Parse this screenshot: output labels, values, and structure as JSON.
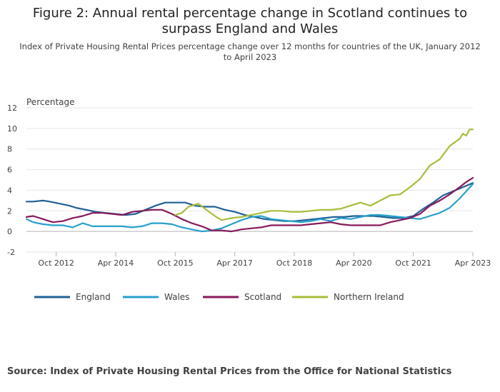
{
  "title": "Figure 2: Annual rental percentage change in Scotland continues to surpass England and Wales",
  "subtitle": "Index of Private Housing Rental Prices percentage change over 12 months for countries of the UK, January 2012 to April 2023",
  "source": "Source: Index of Private Housing Rental Prices from the Office for National Statistics",
  "colors": {
    "england": "#206095",
    "wales": "#27A0CC",
    "scotland": "#871A5B",
    "northern_ireland": "#A8BD3A"
  },
  "chart_data": {
    "type": "line",
    "ylabel": "Percentage",
    "ylim": [
      -2,
      12
    ],
    "yticks": [
      -2,
      0,
      2,
      4,
      6,
      8,
      10,
      12
    ],
    "xlim": [
      "2012-01",
      "2023-04"
    ],
    "xticks": [
      {
        "date": "2012-10",
        "label": "Oct 2012"
      },
      {
        "date": "2014-04",
        "label": "Apr 2014"
      },
      {
        "date": "2015-10",
        "label": "Oct 2015"
      },
      {
        "date": "2017-04",
        "label": "Apr 2017"
      },
      {
        "date": "2018-10",
        "label": "Oct 2018"
      },
      {
        "date": "2020-04",
        "label": "Apr 2020"
      },
      {
        "date": "2021-10",
        "label": "Oct 2021"
      },
      {
        "date": "2023-04",
        "label": "Apr 2023"
      }
    ],
    "legend_position": "bottom",
    "series": [
      {
        "name": "England",
        "color": "#206095",
        "points": [
          [
            "2012-01",
            2.9
          ],
          [
            "2012-03",
            2.9
          ],
          [
            "2012-06",
            3.0
          ],
          [
            "2012-08",
            2.9
          ],
          [
            "2012-11",
            2.7
          ],
          [
            "2013-02",
            2.5
          ],
          [
            "2013-04",
            2.3
          ],
          [
            "2013-07",
            2.1
          ],
          [
            "2013-10",
            1.9
          ],
          [
            "2014-01",
            1.8
          ],
          [
            "2014-04",
            1.7
          ],
          [
            "2014-07",
            1.6
          ],
          [
            "2014-10",
            1.7
          ],
          [
            "2015-01",
            2.1
          ],
          [
            "2015-04",
            2.5
          ],
          [
            "2015-07",
            2.8
          ],
          [
            "2015-10",
            2.8
          ],
          [
            "2016-01",
            2.8
          ],
          [
            "2016-04",
            2.5
          ],
          [
            "2016-07",
            2.4
          ],
          [
            "2016-10",
            2.4
          ],
          [
            "2017-01",
            2.1
          ],
          [
            "2017-04",
            1.9
          ],
          [
            "2017-07",
            1.6
          ],
          [
            "2017-10",
            1.4
          ],
          [
            "2018-01",
            1.2
          ],
          [
            "2018-04",
            1.1
          ],
          [
            "2018-07",
            1.0
          ],
          [
            "2018-10",
            1.0
          ],
          [
            "2019-01",
            1.1
          ],
          [
            "2019-04",
            1.2
          ],
          [
            "2019-07",
            1.3
          ],
          [
            "2019-10",
            1.4
          ],
          [
            "2020-01",
            1.4
          ],
          [
            "2020-04",
            1.5
          ],
          [
            "2020-07",
            1.5
          ],
          [
            "2020-10",
            1.5
          ],
          [
            "2021-01",
            1.4
          ],
          [
            "2021-04",
            1.3
          ],
          [
            "2021-07",
            1.3
          ],
          [
            "2021-10",
            1.5
          ],
          [
            "2022-01",
            2.2
          ],
          [
            "2022-04",
            2.8
          ],
          [
            "2022-07",
            3.5
          ],
          [
            "2022-10",
            3.9
          ],
          [
            "2023-01",
            4.3
          ],
          [
            "2023-04",
            4.7
          ]
        ]
      },
      {
        "name": "Wales",
        "color": "#27A0CC",
        "points": [
          [
            "2012-01",
            1.2
          ],
          [
            "2012-03",
            0.9
          ],
          [
            "2012-06",
            0.7
          ],
          [
            "2012-09",
            0.6
          ],
          [
            "2012-12",
            0.6
          ],
          [
            "2013-03",
            0.4
          ],
          [
            "2013-06",
            0.8
          ],
          [
            "2013-09",
            0.5
          ],
          [
            "2013-12",
            0.5
          ],
          [
            "2014-03",
            0.5
          ],
          [
            "2014-06",
            0.5
          ],
          [
            "2014-09",
            0.4
          ],
          [
            "2014-12",
            0.5
          ],
          [
            "2015-03",
            0.8
          ],
          [
            "2015-06",
            0.8
          ],
          [
            "2015-09",
            0.7
          ],
          [
            "2015-12",
            0.4
          ],
          [
            "2016-03",
            0.2
          ],
          [
            "2016-06",
            0.0
          ],
          [
            "2016-09",
            0.1
          ],
          [
            "2016-12",
            0.3
          ],
          [
            "2017-03",
            0.7
          ],
          [
            "2017-06",
            1.1
          ],
          [
            "2017-09",
            1.4
          ],
          [
            "2017-12",
            1.5
          ],
          [
            "2018-03",
            1.2
          ],
          [
            "2018-06",
            1.1
          ],
          [
            "2018-09",
            1.0
          ],
          [
            "2018-12",
            0.9
          ],
          [
            "2019-03",
            1.0
          ],
          [
            "2019-06",
            1.2
          ],
          [
            "2019-09",
            1.0
          ],
          [
            "2019-12",
            1.3
          ],
          [
            "2020-03",
            1.2
          ],
          [
            "2020-06",
            1.4
          ],
          [
            "2020-09",
            1.6
          ],
          [
            "2020-12",
            1.6
          ],
          [
            "2021-03",
            1.5
          ],
          [
            "2021-06",
            1.4
          ],
          [
            "2021-09",
            1.3
          ],
          [
            "2021-12",
            1.2
          ],
          [
            "2022-03",
            1.5
          ],
          [
            "2022-06",
            1.8
          ],
          [
            "2022-09",
            2.3
          ],
          [
            "2022-12",
            3.2
          ],
          [
            "2023-02",
            3.9
          ],
          [
            "2023-04",
            4.6
          ]
        ]
      },
      {
        "name": "Scotland",
        "color": "#871A5B",
        "points": [
          [
            "2012-01",
            1.4
          ],
          [
            "2012-03",
            1.5
          ],
          [
            "2012-06",
            1.2
          ],
          [
            "2012-09",
            0.9
          ],
          [
            "2012-12",
            1.0
          ],
          [
            "2013-03",
            1.3
          ],
          [
            "2013-06",
            1.5
          ],
          [
            "2013-09",
            1.8
          ],
          [
            "2013-12",
            1.8
          ],
          [
            "2014-03",
            1.7
          ],
          [
            "2014-06",
            1.6
          ],
          [
            "2014-09",
            1.9
          ],
          [
            "2014-12",
            2.0
          ],
          [
            "2015-03",
            2.1
          ],
          [
            "2015-06",
            2.1
          ],
          [
            "2015-09",
            1.7
          ],
          [
            "2015-12",
            1.2
          ],
          [
            "2016-03",
            0.8
          ],
          [
            "2016-06",
            0.5
          ],
          [
            "2016-09",
            0.1
          ],
          [
            "2016-12",
            0.1
          ],
          [
            "2017-03",
            0.0
          ],
          [
            "2017-06",
            0.2
          ],
          [
            "2017-09",
            0.3
          ],
          [
            "2017-12",
            0.4
          ],
          [
            "2018-03",
            0.6
          ],
          [
            "2018-06",
            0.6
          ],
          [
            "2018-09",
            0.6
          ],
          [
            "2018-12",
            0.6
          ],
          [
            "2019-03",
            0.7
          ],
          [
            "2019-06",
            0.8
          ],
          [
            "2019-09",
            0.9
          ],
          [
            "2019-12",
            0.7
          ],
          [
            "2020-03",
            0.6
          ],
          [
            "2020-06",
            0.6
          ],
          [
            "2020-09",
            0.6
          ],
          [
            "2020-12",
            0.6
          ],
          [
            "2021-03",
            0.9
          ],
          [
            "2021-06",
            1.1
          ],
          [
            "2021-09",
            1.3
          ],
          [
            "2021-12",
            1.7
          ],
          [
            "2022-03",
            2.5
          ],
          [
            "2022-06",
            3.0
          ],
          [
            "2022-09",
            3.6
          ],
          [
            "2022-12",
            4.3
          ],
          [
            "2023-02",
            4.8
          ],
          [
            "2023-04",
            5.2
          ]
        ]
      },
      {
        "name": "Northern Ireland",
        "color": "#A8BD3A",
        "points": [
          [
            "2015-10",
            1.6
          ],
          [
            "2015-12",
            1.8
          ],
          [
            "2016-02",
            2.4
          ],
          [
            "2016-05",
            2.7
          ],
          [
            "2016-07",
            2.2
          ],
          [
            "2016-10",
            1.5
          ],
          [
            "2016-12",
            1.1
          ],
          [
            "2017-03",
            1.3
          ],
          [
            "2017-06",
            1.4
          ],
          [
            "2017-09",
            1.6
          ],
          [
            "2017-12",
            1.8
          ],
          [
            "2018-03",
            2.0
          ],
          [
            "2018-06",
            2.0
          ],
          [
            "2018-09",
            1.9
          ],
          [
            "2018-12",
            1.9
          ],
          [
            "2019-03",
            2.0
          ],
          [
            "2019-06",
            2.1
          ],
          [
            "2019-09",
            2.1
          ],
          [
            "2019-12",
            2.2
          ],
          [
            "2020-03",
            2.5
          ],
          [
            "2020-06",
            2.8
          ],
          [
            "2020-09",
            2.5
          ],
          [
            "2020-12",
            3.0
          ],
          [
            "2021-03",
            3.5
          ],
          [
            "2021-06",
            3.6
          ],
          [
            "2021-09",
            4.3
          ],
          [
            "2021-12",
            5.1
          ],
          [
            "2022-03",
            6.4
          ],
          [
            "2022-06",
            7.0
          ],
          [
            "2022-09",
            8.3
          ],
          [
            "2022-12",
            9.0
          ],
          [
            "2023-01",
            9.5
          ],
          [
            "2023-02",
            9.3
          ],
          [
            "2023-03",
            9.9
          ],
          [
            "2023-04",
            9.9
          ]
        ]
      }
    ]
  }
}
